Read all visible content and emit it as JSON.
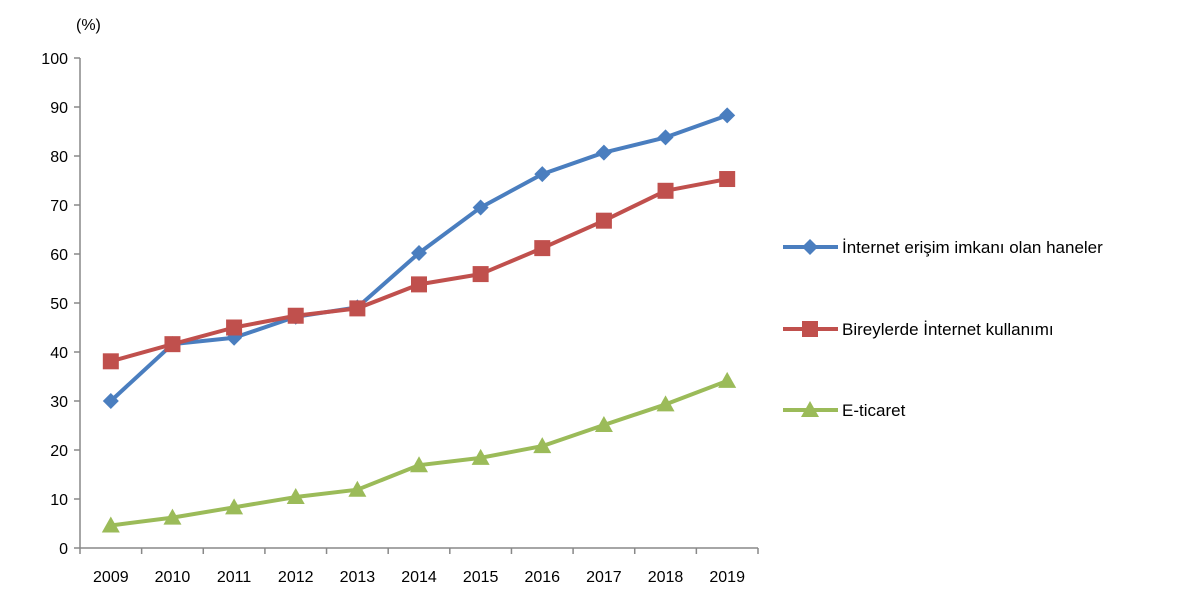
{
  "chart_data": {
    "type": "line",
    "title": "",
    "xlabel": "",
    "ylabel": "(%)",
    "ylim": [
      0,
      100
    ],
    "yticks": [
      "0",
      "10",
      "20",
      "30",
      "40",
      "50",
      "60",
      "70",
      "80",
      "90",
      "100"
    ],
    "grid": false,
    "legend_position": "right",
    "categories": [
      "2009",
      "2010",
      "2011",
      "2012",
      "2013",
      "2014",
      "2015",
      "2016",
      "2017",
      "2018",
      "2019"
    ],
    "series": [
      {
        "name": "İnternet erişim imkanı olan haneler",
        "color": "#4a7ebf",
        "marker": "diamond",
        "values": [
          30.0,
          41.6,
          42.9,
          47.2,
          49.1,
          60.2,
          69.5,
          76.3,
          80.7,
          83.8,
          88.3
        ]
      },
      {
        "name": "Bireylerde İnternet kullanımı",
        "color": "#c0504d",
        "marker": "square",
        "values": [
          38.1,
          41.6,
          45.0,
          47.4,
          48.9,
          53.8,
          55.9,
          61.2,
          66.8,
          72.9,
          75.3
        ]
      },
      {
        "name": "E-ticaret",
        "color": "#9bbb59",
        "marker": "triangle",
        "values": [
          4.6,
          6.2,
          8.3,
          10.4,
          11.9,
          16.9,
          18.4,
          20.8,
          25.1,
          29.3,
          34.1
        ]
      }
    ]
  }
}
